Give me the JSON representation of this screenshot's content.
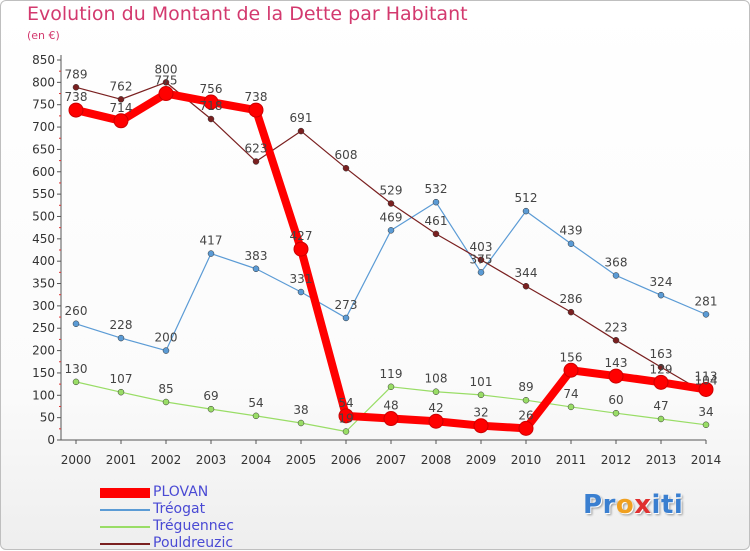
{
  "chart_data": {
    "type": "line",
    "title": "Evolution du Montant de la Dette par Habitant",
    "subtitle": "(en €)",
    "x": [
      "2000",
      "2001",
      "2002",
      "2003",
      "2004",
      "2005",
      "2006",
      "2007",
      "2008",
      "2009",
      "2010",
      "2011",
      "2012",
      "2013",
      "2014"
    ],
    "y_ticks": [
      0,
      50,
      100,
      150,
      200,
      250,
      300,
      350,
      400,
      450,
      500,
      550,
      600,
      650,
      700,
      750,
      800,
      850
    ],
    "ylim": [
      0,
      850
    ],
    "grid": false,
    "legend_position": "bottom-left",
    "series": [
      {
        "name": "PLOVAN",
        "color": "#ff0000",
        "values": [
          738,
          714,
          775,
          756,
          738,
          427,
          54,
          48,
          42,
          32,
          26,
          156,
          143,
          129,
          113
        ]
      },
      {
        "name": "Tréogat",
        "color": "#5b9bd5",
        "values": [
          260,
          228,
          200,
          417,
          383,
          331,
          273,
          469,
          532,
          375,
          512,
          439,
          368,
          324,
          281
        ]
      },
      {
        "name": "Tréguennec",
        "color": "#99dd66",
        "values": [
          130,
          107,
          85,
          69,
          54,
          38,
          19,
          119,
          108,
          101,
          89,
          74,
          60,
          47,
          34
        ]
      },
      {
        "name": "Pouldreuzic",
        "color": "#7a2020",
        "values": [
          789,
          762,
          800,
          718,
          623,
          691,
          608,
          529,
          461,
          403,
          344,
          286,
          223,
          163,
          104
        ]
      }
    ]
  },
  "logo": {
    "letters": [
      "P",
      "r",
      "o",
      "x",
      "i",
      "t",
      "i"
    ],
    "colors": [
      "#3a7fd0",
      "#3a7fd0",
      "#f0a020",
      "#e03030",
      "#3a7fd0",
      "#3a7fd0",
      "#3a7fd0"
    ]
  }
}
